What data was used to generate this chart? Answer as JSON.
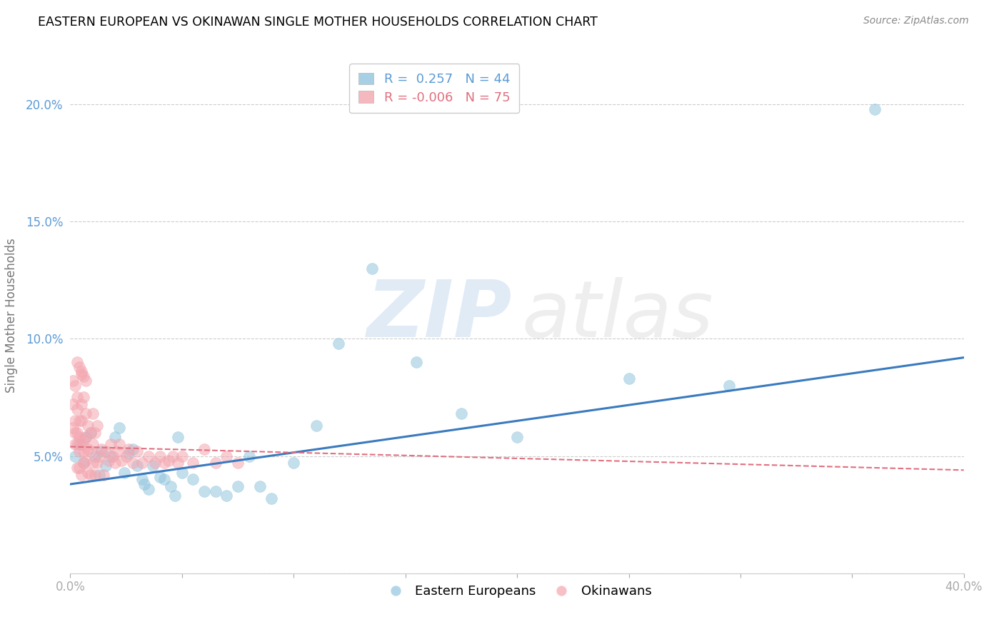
{
  "title": "EASTERN EUROPEAN VS OKINAWAN SINGLE MOTHER HOUSEHOLDS CORRELATION CHART",
  "source": "Source: ZipAtlas.com",
  "ylabel": "Single Mother Households",
  "xlim": [
    0.0,
    0.4
  ],
  "ylim": [
    0.0,
    0.22
  ],
  "legend_r_blue": " 0.257",
  "legend_n_blue": "44",
  "legend_r_pink": "-0.006",
  "legend_n_pink": "75",
  "blue_color": "#92c5de",
  "pink_color": "#f4a6b0",
  "blue_line_color": "#3a7abf",
  "pink_line_color": "#e07080",
  "blue_line_x0": 0.0,
  "blue_line_y0": 0.038,
  "blue_line_x1": 0.4,
  "blue_line_y1": 0.092,
  "pink_line_x0": 0.0,
  "pink_line_y0": 0.054,
  "pink_line_x1": 0.4,
  "pink_line_y1": 0.044,
  "blue_scatter_x": [
    0.002,
    0.004,
    0.006,
    0.007,
    0.009,
    0.011,
    0.013,
    0.014,
    0.016,
    0.018,
    0.02,
    0.022,
    0.024,
    0.026,
    0.028,
    0.03,
    0.032,
    0.033,
    0.035,
    0.037,
    0.04,
    0.042,
    0.045,
    0.047,
    0.048,
    0.05,
    0.055,
    0.06,
    0.065,
    0.07,
    0.075,
    0.08,
    0.085,
    0.09,
    0.1,
    0.11,
    0.12,
    0.135,
    0.155,
    0.175,
    0.2,
    0.25,
    0.295,
    0.36
  ],
  "blue_scatter_y": [
    0.05,
    0.055,
    0.047,
    0.058,
    0.06,
    0.05,
    0.042,
    0.052,
    0.046,
    0.05,
    0.058,
    0.062,
    0.043,
    0.051,
    0.053,
    0.046,
    0.04,
    0.038,
    0.036,
    0.046,
    0.041,
    0.04,
    0.037,
    0.033,
    0.058,
    0.043,
    0.04,
    0.035,
    0.035,
    0.033,
    0.037,
    0.05,
    0.037,
    0.032,
    0.047,
    0.063,
    0.098,
    0.13,
    0.09,
    0.068,
    0.058,
    0.083,
    0.08,
    0.198
  ],
  "pink_scatter_x": [
    0.001,
    0.001,
    0.001,
    0.002,
    0.002,
    0.002,
    0.002,
    0.003,
    0.003,
    0.003,
    0.003,
    0.003,
    0.004,
    0.004,
    0.004,
    0.004,
    0.005,
    0.005,
    0.005,
    0.005,
    0.005,
    0.006,
    0.006,
    0.006,
    0.006,
    0.007,
    0.007,
    0.007,
    0.008,
    0.008,
    0.008,
    0.009,
    0.009,
    0.009,
    0.01,
    0.01,
    0.01,
    0.011,
    0.011,
    0.012,
    0.012,
    0.013,
    0.014,
    0.015,
    0.016,
    0.017,
    0.018,
    0.019,
    0.02,
    0.021,
    0.022,
    0.023,
    0.025,
    0.026,
    0.028,
    0.03,
    0.032,
    0.035,
    0.038,
    0.04,
    0.042,
    0.044,
    0.046,
    0.048,
    0.05,
    0.055,
    0.06,
    0.065,
    0.07,
    0.075,
    0.003,
    0.004,
    0.005,
    0.006,
    0.007
  ],
  "pink_scatter_y": [
    0.082,
    0.062,
    0.072,
    0.08,
    0.06,
    0.055,
    0.065,
    0.045,
    0.055,
    0.06,
    0.07,
    0.075,
    0.045,
    0.052,
    0.058,
    0.065,
    0.042,
    0.055,
    0.065,
    0.085,
    0.072,
    0.047,
    0.057,
    0.075,
    0.052,
    0.048,
    0.058,
    0.068,
    0.043,
    0.053,
    0.063,
    0.042,
    0.052,
    0.06,
    0.047,
    0.055,
    0.068,
    0.042,
    0.06,
    0.047,
    0.063,
    0.05,
    0.053,
    0.042,
    0.052,
    0.048,
    0.055,
    0.05,
    0.047,
    0.052,
    0.055,
    0.048,
    0.05,
    0.053,
    0.047,
    0.052,
    0.047,
    0.05,
    0.047,
    0.05,
    0.047,
    0.048,
    0.05,
    0.047,
    0.05,
    0.047,
    0.053,
    0.047,
    0.05,
    0.047,
    0.09,
    0.088,
    0.086,
    0.084,
    0.082
  ]
}
